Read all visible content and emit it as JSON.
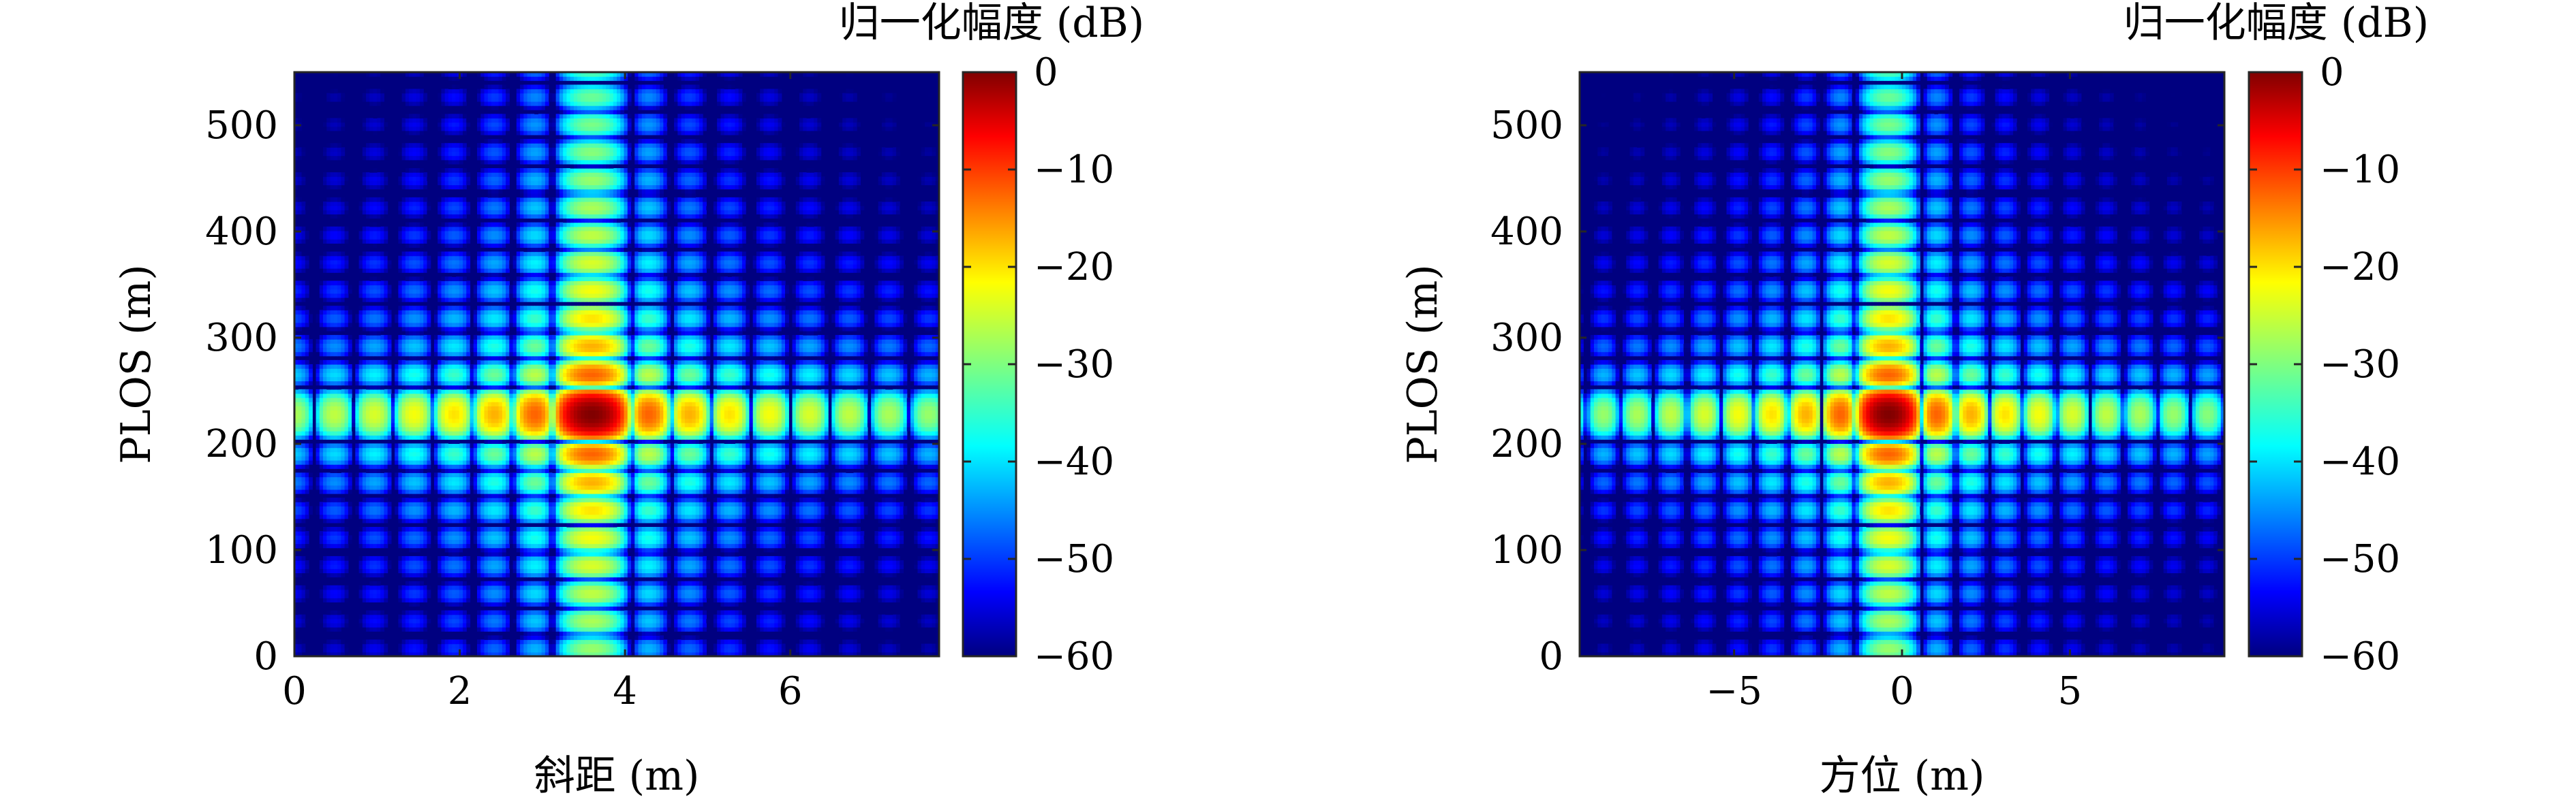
{
  "colormap": "jet",
  "background_color": "#000080",
  "peak_color": "#800000",
  "chart_data": [
    {
      "type": "heatmap",
      "xlabel": "斜距 (m)",
      "ylabel": "PLOS (m)",
      "xlim": [
        0,
        7.8
      ],
      "ylim": [
        0,
        550
      ],
      "x_ticks": [
        0,
        2,
        4,
        6
      ],
      "x_tick_labels": [
        "0",
        "2",
        "4",
        "6"
      ],
      "y_ticks": [
        0,
        100,
        200,
        300,
        400,
        500
      ],
      "y_tick_labels": [
        "0",
        "100",
        "200",
        "300",
        "400",
        "500"
      ],
      "peak": {
        "x": 3.6,
        "y": 228
      },
      "sidelobe_spacing": {
        "x": 0.48,
        "y": 26
      },
      "colorbar": {
        "title": "归一化幅度 (dB)",
        "range": [
          -60,
          0
        ],
        "ticks": [
          0,
          -10,
          -20,
          -30,
          -40,
          -50,
          -60
        ],
        "tick_labels": [
          "0",
          "−10",
          "−20",
          "−30",
          "−40",
          "−50",
          "−60"
        ]
      }
    },
    {
      "type": "heatmap",
      "xlabel": "方位 (m)",
      "ylabel": "PLOS (m)",
      "xlim": [
        -9.6,
        9.6
      ],
      "ylim": [
        0,
        550
      ],
      "x_ticks": [
        -5,
        0,
        5
      ],
      "x_tick_labels": [
        "−5",
        "0",
        "5"
      ],
      "y_ticks": [
        0,
        100,
        200,
        300,
        400,
        500
      ],
      "y_tick_labels": [
        "0",
        "100",
        "200",
        "300",
        "400",
        "500"
      ],
      "peak": {
        "x": -0.4,
        "y": 228
      },
      "sidelobe_spacing": {
        "x": 1.0,
        "y": 26
      },
      "colorbar": {
        "title": "归一化幅度 (dB)",
        "range": [
          -60,
          0
        ],
        "ticks": [
          0,
          -10,
          -20,
          -30,
          -40,
          -50,
          -60
        ],
        "tick_labels": [
          "0",
          "−10",
          "−20",
          "−30",
          "−40",
          "−50",
          "−60"
        ]
      }
    }
  ]
}
